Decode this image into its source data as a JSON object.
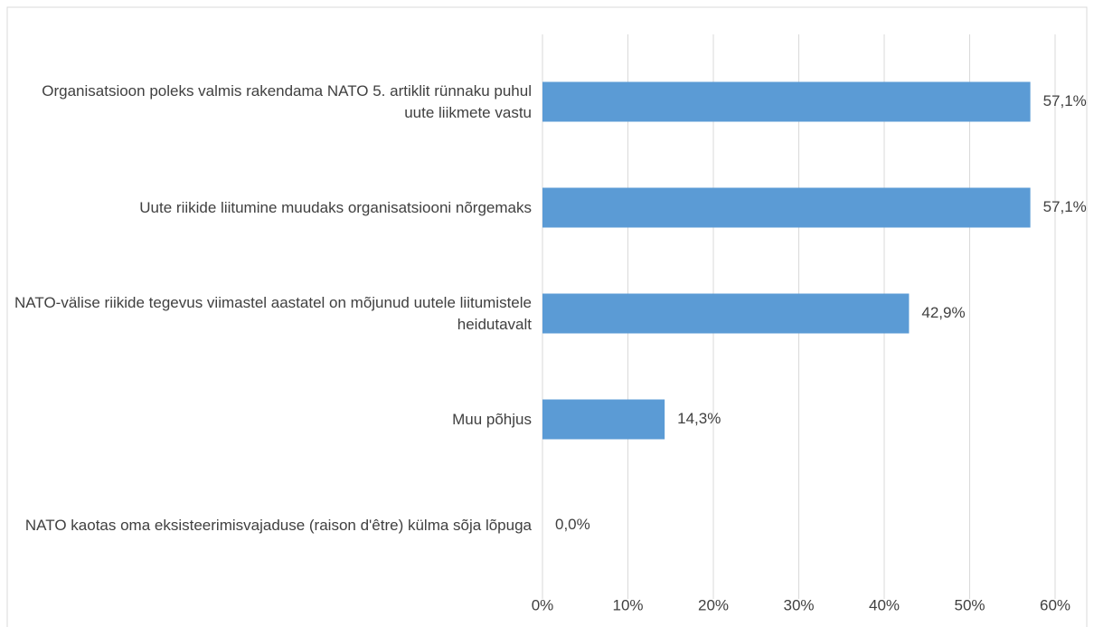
{
  "chart_data": {
    "type": "bar",
    "orientation": "horizontal",
    "categories": [
      "Organisatsioon poleks valmis rakendama NATO 5. artiklit rünnaku puhul uute liikmete vastu",
      "Uute riikide liitumine muudaks organisatsiooni nõrgemaks",
      "NATO-välise riikide tegevus viimastel aastatel on mõjunud uutele liitumistele heidutavalt",
      "Muu põhjus",
      "NATO kaotas oma eksisteerimisvajaduse (raison d'être) külma sõja lõpuga"
    ],
    "values": [
      57.1,
      57.1,
      42.9,
      14.3,
      0
    ],
    "value_labels": [
      "57,1%",
      "57,1%",
      "42,9%",
      "14,3%",
      "0,0%"
    ],
    "color": "#5b9bd5",
    "xlim": [
      0,
      60
    ],
    "xticks": [
      {
        "value": 0,
        "label": "0%"
      },
      {
        "value": 10,
        "label": "10%"
      },
      {
        "value": 20,
        "label": "20%"
      },
      {
        "value": 30,
        "label": "30%"
      },
      {
        "value": 40,
        "label": "40%"
      },
      {
        "value": 50,
        "label": "50%"
      },
      {
        "value": 60,
        "label": "60%"
      }
    ],
    "grid": true
  }
}
